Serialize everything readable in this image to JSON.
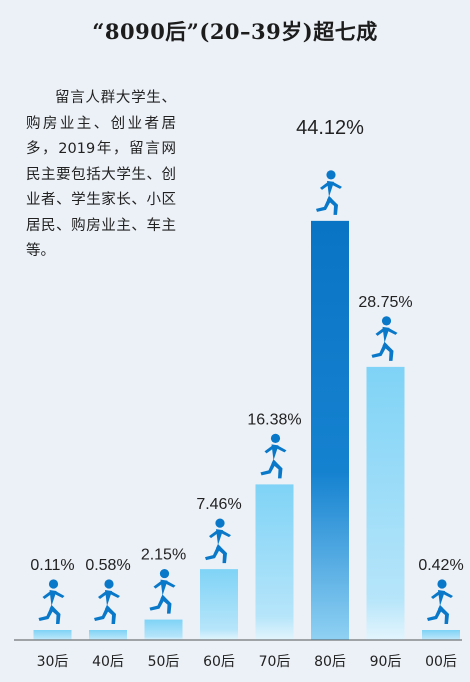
{
  "title": "“8090后”(20–39岁)超七成",
  "description": "留言人群大学生、购房业主、创业者居多，2019年，留言网民主要包括大学生、创业者、学生家长、小区居民、购房业主、车主等。",
  "colors": {
    "bar_light": "#7fd3f6",
    "bar_highlight": "#0a78c8",
    "runner": "#0a78c8",
    "baseline": "#555555"
  },
  "icon": "running-person-icon",
  "chart_data": {
    "type": "bar",
    "categories": [
      "30后",
      "40后",
      "50后",
      "60后",
      "70后",
      "80后",
      "90后",
      "00后"
    ],
    "values": [
      0.11,
      0.58,
      2.15,
      7.46,
      16.38,
      44.12,
      28.75,
      0.42
    ],
    "value_labels": [
      "0.11%",
      "0.58%",
      "2.15%",
      "7.46%",
      "16.38%",
      "44.12%",
      "28.75%",
      "0.42%"
    ],
    "highlight_category": "80后",
    "unit": "%"
  }
}
